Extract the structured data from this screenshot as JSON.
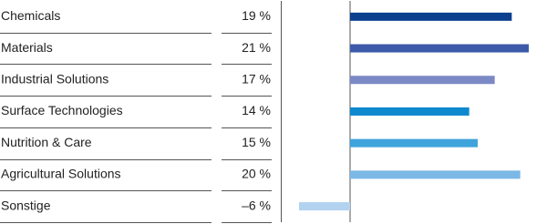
{
  "chart_data": {
    "type": "bar",
    "orientation": "horizontal",
    "categories": [
      "Chemicals",
      "Materials",
      "Industrial Solutions",
      "Surface Technologies",
      "Nutrition & Care",
      "Agricultural Solutions",
      "Sonstige"
    ],
    "values": [
      19,
      21,
      17,
      14,
      15,
      20,
      -6
    ],
    "value_labels": [
      "19 %",
      "21 %",
      "17 %",
      "14 %",
      "15 %",
      "20 %",
      "–6 %"
    ],
    "colors": [
      "#0d3f8f",
      "#3c5aa8",
      "#7b89c5",
      "#0e88cf",
      "#3fa3dc",
      "#7bb8e6",
      "#b2d2f0"
    ]
  }
}
